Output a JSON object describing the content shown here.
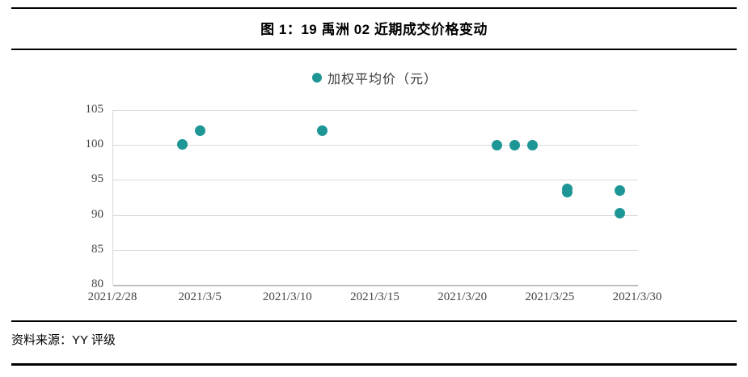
{
  "figure": {
    "title": "图 1：19 禹洲 02 近期成交价格变动",
    "source": "资料来源：YY 评级"
  },
  "chart_data": {
    "type": "scatter",
    "title": "图 1：19 禹洲 02 近期成交价格变动",
    "legend": {
      "label": "加权平均价（元）",
      "position": "top-center"
    },
    "grid": "horizontal-only",
    "x_axis": {
      "start": "2021/2/28",
      "end": "2021/3/30",
      "tick_interval_days": 5,
      "tick_labels": [
        "2021/2/28",
        "2021/3/5",
        "2021/3/10",
        "2021/3/15",
        "2021/3/20",
        "2021/3/25",
        "2021/3/30"
      ]
    },
    "y_axis": {
      "min": 80,
      "max": 105,
      "tick_step": 5,
      "tick_labels": [
        105,
        100,
        95,
        90,
        85,
        80
      ]
    },
    "series": [
      {
        "name": "加权平均价（元）",
        "color": "#1e9696",
        "points": [
          {
            "date": "2021/3/4",
            "value": 100.1
          },
          {
            "date": "2021/3/5",
            "value": 102.1
          },
          {
            "date": "2021/3/12",
            "value": 102.1
          },
          {
            "date": "2021/3/22",
            "value": 100.0
          },
          {
            "date": "2021/3/23",
            "value": 100.0
          },
          {
            "date": "2021/3/24",
            "value": 100.0
          },
          {
            "date": "2021/3/26",
            "value": 93.7
          },
          {
            "date": "2021/3/26",
            "value": 93.3
          },
          {
            "date": "2021/3/29",
            "value": 93.5
          },
          {
            "date": "2021/3/29",
            "value": 90.2
          }
        ]
      }
    ],
    "colors": {
      "dot": "#1e9696",
      "gridline": "#d9d9d9",
      "axis_line": "#bfbfbf",
      "tick_text": "#444444",
      "rule": "#000000"
    }
  }
}
